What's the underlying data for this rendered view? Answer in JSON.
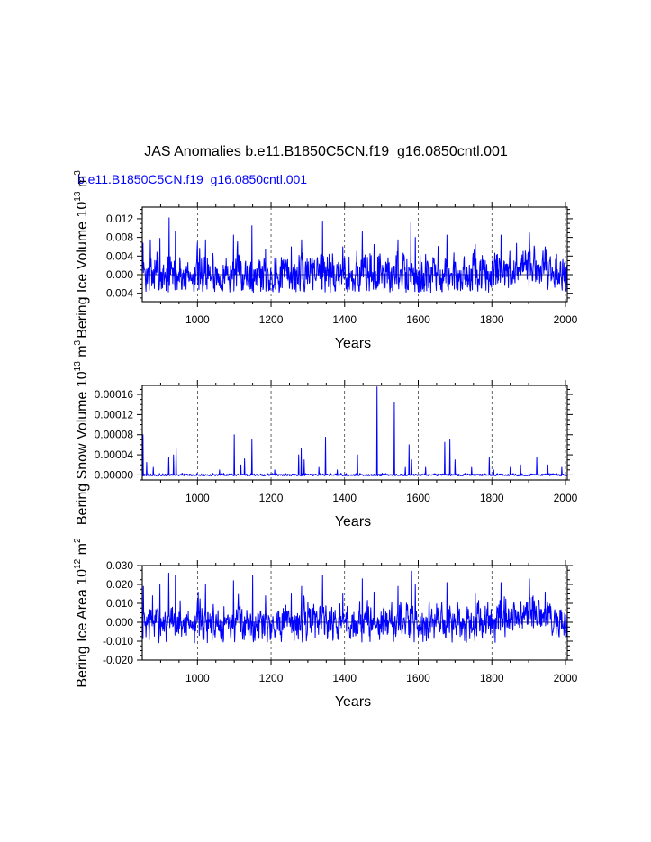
{
  "figure": {
    "title": "JAS Anomalies b.e11.B1850C5CN.f19_g16.0850cntl.001",
    "case_label": "b.e11.B1850C5CN.f19_g16.0850cntl.001",
    "colors": {
      "series": "#0000ff",
      "case_label": "#0000ff",
      "axes": "#000000"
    }
  },
  "chart_data": [
    {
      "type": "line",
      "id": "ice-volume",
      "title": "",
      "ylabel_main": "Bering Ice Volume 10",
      "ylabel_exp": "13",
      "ylabel_unit": "m",
      "ylabel_unit_exp": "3",
      "xlabel": "Years",
      "xlim": [
        850,
        2005
      ],
      "ylim": [
        -0.0058,
        0.0145
      ],
      "xticks": [
        1000,
        1200,
        1400,
        1600,
        1800,
        2000
      ],
      "xtick_labels": [
        "1000",
        "1200",
        "1400",
        "1600",
        "1800",
        "2000"
      ],
      "yticks": [
        -0.004,
        0.0,
        0.004,
        0.008,
        0.012
      ],
      "ytick_labels": [
        "-0.004",
        "0.000",
        "0.004",
        "0.008",
        "0.012"
      ],
      "zero_line": 0,
      "series": [
        {
          "name": "b.e11.B1850C5CN.f19_g16.0850cntl.001",
          "x_start": 850,
          "x_end": 2005,
          "baseline": 0.0,
          "noise": 0.0022,
          "min": -0.0038,
          "peaks": [
            [
              852,
              0.0068
            ],
            [
              872,
              0.0075
            ],
            [
              898,
              0.0078
            ],
            [
              923,
              0.0122
            ],
            [
              940,
              0.0092
            ],
            [
              1000,
              0.007
            ],
            [
              1022,
              0.0075
            ],
            [
              1098,
              0.0085
            ],
            [
              1148,
              0.0105
            ],
            [
              1185,
              0.0055
            ],
            [
              1255,
              0.006
            ],
            [
              1283,
              0.0075
            ],
            [
              1340,
              0.0115
            ],
            [
              1395,
              0.006
            ],
            [
              1448,
              0.0092
            ],
            [
              1480,
              0.0065
            ],
            [
              1545,
              0.0075
            ],
            [
              1580,
              0.0112
            ],
            [
              1592,
              0.008
            ],
            [
              1678,
              0.0085
            ],
            [
              1755,
              0.0065
            ],
            [
              1825,
              0.0085
            ],
            [
              1902,
              0.009
            ],
            [
              1945,
              0.006
            ]
          ],
          "segments": [
            [
              1300,
              1350,
              0.0015
            ],
            [
              1860,
              1960,
              0.0015
            ]
          ],
          "seed": 7
        }
      ]
    },
    {
      "type": "line",
      "id": "snow-volume",
      "title": "",
      "ylabel_main": "Bering Snow Volume 10",
      "ylabel_exp": "13",
      "ylabel_unit": "m",
      "ylabel_unit_exp": "3",
      "xlabel": "Years",
      "xlim": [
        850,
        2005
      ],
      "ylim": [
        -1e-05,
        0.000178
      ],
      "xticks": [
        1000,
        1200,
        1400,
        1600,
        1800,
        2000
      ],
      "xtick_labels": [
        "1000",
        "1200",
        "1400",
        "1600",
        "1800",
        "2000"
      ],
      "yticks": [
        0.0,
        4e-05,
        8e-05,
        0.00012,
        0.00016
      ],
      "ytick_labels": [
        "0.00000",
        "0.00004",
        "0.00008",
        "0.00012",
        "0.00016"
      ],
      "zero_line": 0,
      "series": [
        {
          "name": "b.e11.B1850C5CN.f19_g16.0850cntl.001",
          "x_start": 850,
          "x_end": 2005,
          "baseline": 0.0,
          "noise": 1.2e-06,
          "min": -2e-06,
          "peaks": [
            [
              852,
              8e-05
            ],
            [
              862,
              2.5e-05
            ],
            [
              880,
              1.5e-05
            ],
            [
              922,
              3.5e-05
            ],
            [
              935,
              4e-05
            ],
            [
              942,
              5.5e-05
            ],
            [
              1060,
              1e-05
            ],
            [
              1100,
              8e-05
            ],
            [
              1118,
              2e-05
            ],
            [
              1128,
              3.2e-05
            ],
            [
              1148,
              7e-05
            ],
            [
              1210,
              1e-05
            ],
            [
              1275,
              4e-05
            ],
            [
              1282,
              5.2e-05
            ],
            [
              1290,
              3e-05
            ],
            [
              1330,
              1.5e-05
            ],
            [
              1348,
              7.5e-05
            ],
            [
              1380,
              1e-05
            ],
            [
              1435,
              4e-05
            ],
            [
              1488,
              0.000175
            ],
            [
              1535,
              0.000145
            ],
            [
              1565,
              1.5e-05
            ],
            [
              1575,
              6e-05
            ],
            [
              1582,
              3e-05
            ],
            [
              1620,
              1.5e-05
            ],
            [
              1672,
              6.5e-05
            ],
            [
              1686,
              7e-05
            ],
            [
              1700,
              3e-05
            ],
            [
              1745,
              1.5e-05
            ],
            [
              1793,
              3.5e-05
            ],
            [
              1805,
              1e-05
            ],
            [
              1850,
              1.5e-05
            ],
            [
              1878,
              2e-05
            ],
            [
              1922,
              3.5e-05
            ],
            [
              1952,
              2e-05
            ],
            [
              1990,
              1.5e-05
            ]
          ],
          "segments": [],
          "seed": 21
        }
      ]
    },
    {
      "type": "line",
      "id": "ice-area",
      "title": "",
      "ylabel_main": "Bering Ice Area 10",
      "ylabel_exp": "12",
      "ylabel_unit": "m",
      "ylabel_unit_exp": "2",
      "xlabel": "Years",
      "xlim": [
        850,
        2005
      ],
      "ylim": [
        -0.02,
        0.03
      ],
      "xticks": [
        1000,
        1200,
        1400,
        1600,
        1800,
        2000
      ],
      "xtick_labels": [
        "1000",
        "1200",
        "1400",
        "1600",
        "1800",
        "2000"
      ],
      "yticks": [
        -0.02,
        -0.01,
        0.0,
        0.01,
        0.02,
        0.03
      ],
      "ytick_labels": [
        "-0.020",
        "-0.010",
        "0.000",
        "0.010",
        "0.020",
        "0.030"
      ],
      "zero_line": 0,
      "series": [
        {
          "name": "b.e11.B1850C5CN.f19_g16.0850cntl.001",
          "x_start": 850,
          "x_end": 2005,
          "baseline": 0.0,
          "noise": 0.0048,
          "min": -0.011,
          "peaks": [
            [
              853,
              0.019
            ],
            [
              878,
              0.014
            ],
            [
              898,
              0.02
            ],
            [
              922,
              0.026
            ],
            [
              940,
              0.025
            ],
            [
              1002,
              0.016
            ],
            [
              1022,
              0.02
            ],
            [
              1098,
              0.022
            ],
            [
              1150,
              0.025
            ],
            [
              1185,
              0.014
            ],
            [
              1255,
              0.015
            ],
            [
              1283,
              0.019
            ],
            [
              1340,
              0.025
            ],
            [
              1395,
              0.015
            ],
            [
              1448,
              0.023
            ],
            [
              1480,
              0.016
            ],
            [
              1545,
              0.019
            ],
            [
              1582,
              0.027
            ],
            [
              1592,
              0.02
            ],
            [
              1678,
              0.021
            ],
            [
              1755,
              0.015
            ],
            [
              1825,
              0.021
            ],
            [
              1902,
              0.023
            ],
            [
              1945,
              0.016
            ]
          ],
          "segments": [
            [
              1300,
              1350,
              0.003
            ],
            [
              1860,
              1960,
              0.004
            ]
          ],
          "seed": 7
        }
      ]
    }
  ]
}
